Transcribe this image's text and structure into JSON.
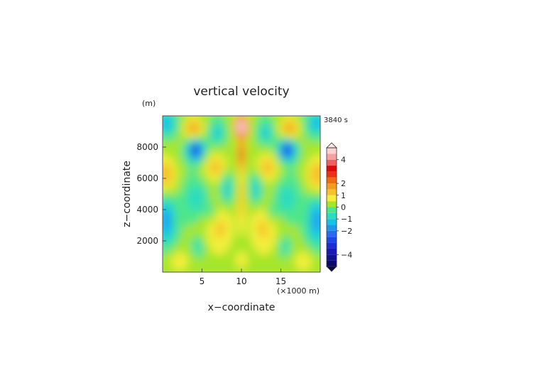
{
  "chart_data": {
    "type": "heatmap",
    "title": "vertical velocity",
    "xlabel": "x−coordinate",
    "ylabel": "z−coordinate",
    "x_unit": "(×1000 m)",
    "y_unit": "(m)",
    "time_label": "3840 s",
    "xlim": [
      0,
      20
    ],
    "ylim": [
      0,
      10000
    ],
    "x_ticks": [
      5,
      10,
      15
    ],
    "y_ticks": [
      2000,
      4000,
      6000,
      8000
    ],
    "x_tick_labels": [
      "5",
      "10",
      "15"
    ],
    "y_tick_labels": [
      "2000",
      "4000",
      "6000",
      "8000"
    ],
    "colorbar": {
      "levels": [
        -5,
        -4.5,
        -4,
        -3.5,
        -3,
        -2.5,
        -2,
        -1.5,
        -1,
        -0.5,
        0,
        0.5,
        1,
        1.5,
        2,
        2.5,
        3,
        3.5,
        4,
        4.5,
        5
      ],
      "colors": [
        "#0a0a6e",
        "#101092",
        "#1818b4",
        "#1c2cd2",
        "#1c46e6",
        "#2a6af0",
        "#1e96f0",
        "#14c2e8",
        "#2adcc0",
        "#4ee68a",
        "#a6e62a",
        "#f2ee3a",
        "#f6c22a",
        "#f69a1a",
        "#f06a0e",
        "#ec3016",
        "#de0a0a",
        "#f06060",
        "#f6a0a0",
        "#fcd2d2"
      ],
      "tick_values": [
        4,
        2,
        1,
        0,
        -1,
        -2,
        -4
      ],
      "tick_labels": [
        "4",
        "2",
        "1",
        "0",
        "−1",
        "−2",
        "−4"
      ],
      "extend": "both"
    }
  }
}
